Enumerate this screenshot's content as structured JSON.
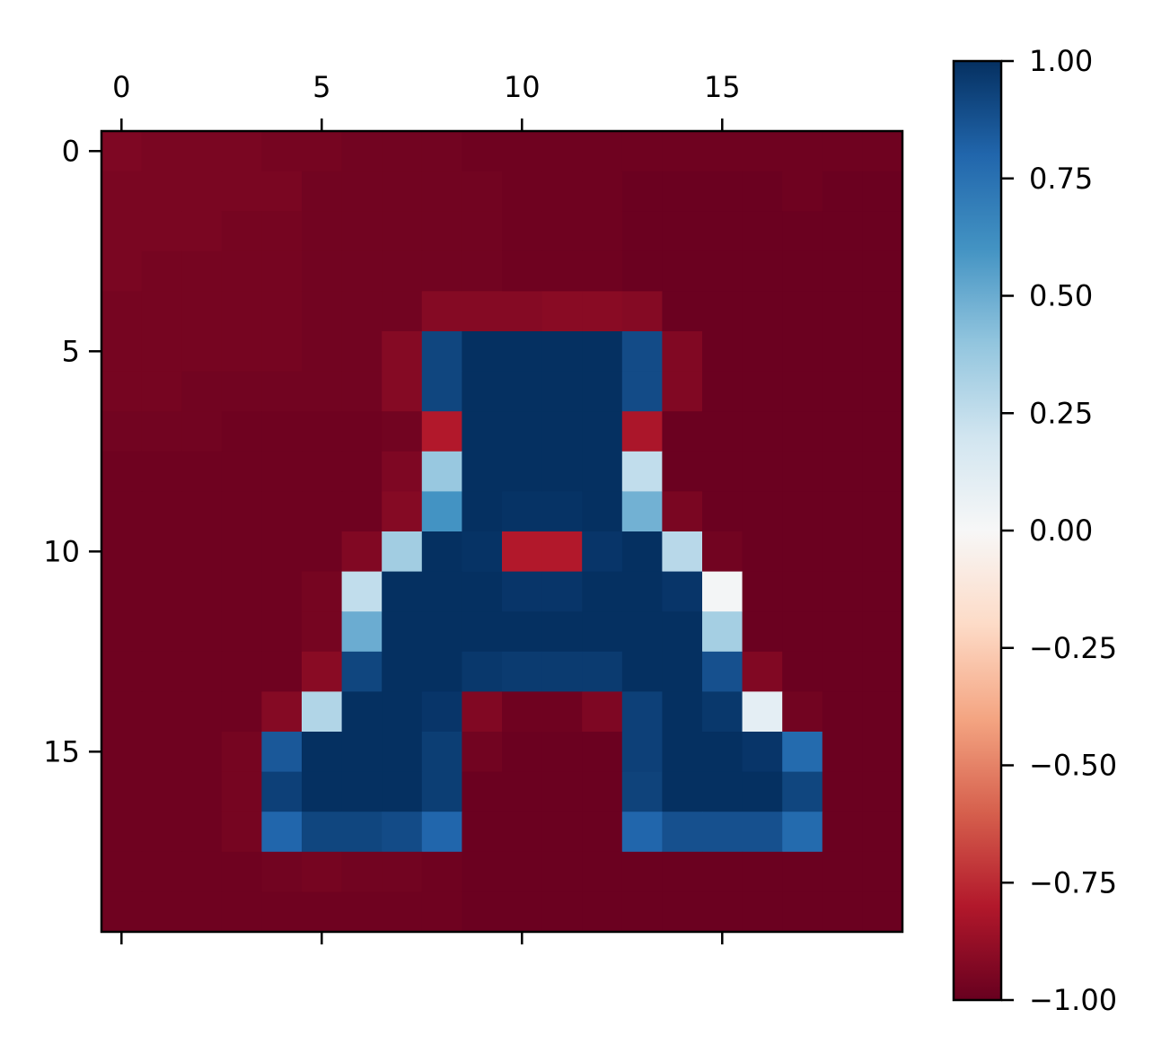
{
  "chart_data": {
    "type": "heatmap",
    "title": "",
    "xlabel": "",
    "ylabel": "",
    "colormap": "RdBu",
    "vmin": -1.0,
    "vmax": 1.0,
    "rows": 20,
    "cols": 20,
    "xticks": [
      0,
      5,
      10,
      15
    ],
    "yticks": [
      0,
      5,
      10,
      15
    ],
    "xtick_labels": [
      "0",
      "5",
      "10",
      "15"
    ],
    "ytick_labels": [
      "0",
      "5",
      "10",
      "15"
    ],
    "colorbar_ticks": [
      1.0,
      0.75,
      0.5,
      0.25,
      0.0,
      -0.25,
      -0.5,
      -0.75,
      -1.0
    ],
    "colorbar_labels": [
      "1.00",
      "0.75",
      "0.50",
      "0.25",
      "0.00",
      "−0.25",
      "−0.50",
      "−0.75",
      "−1.00"
    ],
    "values": [
      [
        -0.94,
        -0.95,
        -0.95,
        -0.95,
        -0.96,
        -0.96,
        -0.97,
        -0.97,
        -0.97,
        -0.98,
        -0.98,
        -0.98,
        -0.98,
        -0.98,
        -0.98,
        -0.98,
        -0.98,
        -0.98,
        -0.98,
        -0.98
      ],
      [
        -0.95,
        -0.95,
        -0.95,
        -0.95,
        -0.95,
        -0.97,
        -0.97,
        -0.97,
        -0.97,
        -0.97,
        -0.98,
        -0.98,
        -0.98,
        -0.99,
        -0.99,
        -0.99,
        -0.99,
        -0.98,
        -0.99,
        -0.99
      ],
      [
        -0.95,
        -0.95,
        -0.95,
        -0.96,
        -0.96,
        -0.97,
        -0.97,
        -0.97,
        -0.97,
        -0.97,
        -0.98,
        -0.98,
        -0.98,
        -0.99,
        -0.99,
        -0.99,
        -0.99,
        -0.99,
        -0.99,
        -0.99
      ],
      [
        -0.95,
        -0.96,
        -0.96,
        -0.96,
        -0.96,
        -0.97,
        -0.97,
        -0.97,
        -0.97,
        -0.97,
        -0.98,
        -0.98,
        -0.98,
        -0.99,
        -0.99,
        -0.99,
        -0.99,
        -0.99,
        -0.99,
        -0.99
      ],
      [
        -0.96,
        -0.96,
        -0.96,
        -0.96,
        -0.96,
        -0.97,
        -0.97,
        -0.97,
        -0.92,
        -0.92,
        -0.92,
        -0.91,
        -0.91,
        -0.92,
        -0.99,
        -0.99,
        -0.99,
        -0.99,
        -0.99,
        -0.99
      ],
      [
        -0.96,
        -0.96,
        -0.96,
        -0.96,
        -0.96,
        -0.97,
        -0.97,
        -0.92,
        0.92,
        1.0,
        1.0,
        1.0,
        1.0,
        0.9,
        -0.93,
        -0.99,
        -0.99,
        -0.99,
        -0.99,
        -0.99
      ],
      [
        -0.96,
        -0.96,
        -0.97,
        -0.97,
        -0.97,
        -0.97,
        -0.97,
        -0.92,
        0.92,
        1.0,
        1.0,
        1.0,
        1.0,
        0.9,
        -0.93,
        -0.99,
        -0.99,
        -0.99,
        -0.99,
        -0.99
      ],
      [
        -0.97,
        -0.97,
        -0.97,
        -0.98,
        -0.98,
        -0.98,
        -0.98,
        -0.97,
        -0.8,
        1.0,
        1.0,
        1.0,
        1.0,
        -0.82,
        -0.99,
        -0.99,
        -0.99,
        -0.99,
        -0.99,
        -0.99
      ],
      [
        -0.98,
        -0.98,
        -0.98,
        -0.98,
        -0.98,
        -0.98,
        -0.98,
        -0.94,
        0.38,
        1.0,
        1.0,
        1.0,
        1.0,
        0.25,
        -0.99,
        -0.99,
        -0.99,
        -0.99,
        -0.99,
        -0.99
      ],
      [
        -0.98,
        -0.98,
        -0.98,
        -0.98,
        -0.98,
        -0.98,
        -0.98,
        -0.92,
        0.6,
        1.0,
        0.99,
        0.99,
        1.0,
        0.48,
        -0.95,
        -0.99,
        -0.99,
        -0.99,
        -0.99,
        -0.99
      ],
      [
        -0.98,
        -0.98,
        -0.98,
        -0.98,
        -0.98,
        -0.98,
        -0.93,
        0.35,
        1.0,
        0.99,
        -0.8,
        -0.8,
        0.98,
        1.0,
        0.28,
        -0.97,
        -0.99,
        -0.99,
        -0.99,
        -0.99
      ],
      [
        -0.98,
        -0.98,
        -0.98,
        -0.98,
        -0.98,
        -0.96,
        0.25,
        1.0,
        1.0,
        1.0,
        0.98,
        0.98,
        1.0,
        1.0,
        0.98,
        0.02,
        -0.99,
        -0.99,
        -0.99,
        -0.99
      ],
      [
        -0.98,
        -0.98,
        -0.98,
        -0.98,
        -0.98,
        -0.96,
        0.5,
        1.0,
        1.0,
        1.0,
        1.0,
        1.0,
        1.0,
        1.0,
        1.0,
        0.34,
        -0.99,
        -0.99,
        -0.99,
        -0.99
      ],
      [
        -0.98,
        -0.98,
        -0.98,
        -0.98,
        -0.98,
        -0.91,
        0.92,
        1.0,
        1.0,
        0.97,
        0.96,
        0.96,
        0.96,
        1.0,
        1.0,
        0.88,
        -0.93,
        -0.99,
        -0.99,
        -0.99
      ],
      [
        -0.98,
        -0.98,
        -0.98,
        -0.98,
        -0.92,
        0.3,
        1.0,
        1.0,
        0.98,
        -0.93,
        -0.98,
        -0.98,
        -0.94,
        0.94,
        1.0,
        0.97,
        0.1,
        -0.97,
        -0.99,
        -0.99
      ],
      [
        -0.98,
        -0.98,
        -0.98,
        -0.96,
        0.85,
        1.0,
        1.0,
        1.0,
        0.95,
        -0.97,
        -0.99,
        -0.99,
        -0.99,
        0.94,
        1.0,
        1.0,
        0.98,
        0.78,
        -0.99,
        -0.99
      ],
      [
        -0.98,
        -0.98,
        -0.98,
        -0.96,
        0.94,
        1.0,
        1.0,
        1.0,
        0.95,
        -0.99,
        -0.99,
        -0.99,
        -0.99,
        0.93,
        1.0,
        1.0,
        1.0,
        0.92,
        -0.99,
        -0.99
      ],
      [
        -0.98,
        -0.98,
        -0.98,
        -0.96,
        0.8,
        0.92,
        0.92,
        0.9,
        0.8,
        -0.99,
        -0.99,
        -0.99,
        -0.99,
        0.8,
        0.88,
        0.88,
        0.88,
        0.78,
        -0.99,
        -0.99
      ],
      [
        -0.98,
        -0.98,
        -0.98,
        -0.98,
        -0.97,
        -0.96,
        -0.97,
        -0.97,
        -0.98,
        -0.99,
        -0.99,
        -0.99,
        -0.99,
        -0.99,
        -0.99,
        -0.99,
        -0.99,
        -0.99,
        -0.99,
        -0.99
      ],
      [
        -0.98,
        -0.98,
        -0.98,
        -0.98,
        -0.98,
        -0.98,
        -0.98,
        -0.98,
        -0.98,
        -0.99,
        -0.99,
        -0.99,
        -0.99,
        -0.99,
        -0.99,
        -0.99,
        -0.99,
        -0.99,
        -0.99,
        -0.99
      ]
    ]
  }
}
